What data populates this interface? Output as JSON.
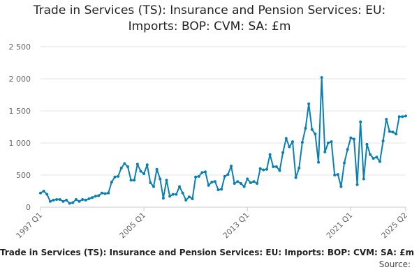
{
  "title_lines": [
    "Trade in Services (TS): Insurance and Pension Services: EU:",
    "Imports: BOP: CVM: SA: £m"
  ],
  "legend": {
    "label": "Trade in Services (TS): Insurance and Pension Services: EU: Imports: BOP: CVM: SA: £m"
  },
  "source": {
    "label": "Source:"
  },
  "colors": {
    "line": "#0b7fb2",
    "grid": "#e6e6e6",
    "axis": "#cccccc",
    "tick_text": "#666666"
  },
  "chart_data": {
    "type": "line",
    "title": "Trade in Services (TS): Insurance and Pension Services: EU: Imports: BOP: CVM: SA: £m",
    "xlabel": "",
    "ylabel": "",
    "ylim": [
      0,
      2500
    ],
    "yticks": [
      0,
      500,
      1000,
      1500,
      2000,
      2500
    ],
    "ytick_labels": [
      "0",
      "500",
      "1 000",
      "1 500",
      "2 000",
      "2 500"
    ],
    "x_start": "1997 Q1",
    "x_end": "2025 Q2",
    "xtick_labels": [
      {
        "label": "1997 Q1",
        "index": 0
      },
      {
        "label": "2005 Q1",
        "index": 32
      },
      {
        "label": "2013 Q1",
        "index": 64
      },
      {
        "label": "2021 Q1",
        "index": 96
      },
      {
        "label": "2025 Q2",
        "index": 113
      }
    ],
    "grid": true,
    "legend_position": "bottom",
    "series": [
      {
        "name": "Trade in Services (TS): Insurance and Pension Services: EU: Imports: BOP: CVM: SA: £m",
        "values": [
          220,
          250,
          200,
          90,
          110,
          120,
          120,
          90,
          110,
          60,
          70,
          120,
          90,
          120,
          110,
          130,
          150,
          170,
          180,
          220,
          210,
          220,
          390,
          470,
          480,
          610,
          680,
          630,
          420,
          420,
          670,
          560,
          520,
          660,
          380,
          320,
          590,
          440,
          140,
          420,
          170,
          200,
          200,
          320,
          220,
          110,
          160,
          130,
          470,
          480,
          540,
          550,
          340,
          390,
          400,
          270,
          280,
          480,
          510,
          640,
          370,
          400,
          370,
          320,
          440,
          380,
          400,
          370,
          600,
          580,
          590,
          820,
          630,
          630,
          570,
          850,
          1070,
          940,
          1020,
          460,
          610,
          1010,
          1230,
          1610,
          1210,
          1140,
          700,
          2020,
          860,
          1000,
          1020,
          500,
          510,
          320,
          690,
          900,
          1080,
          1060,
          350,
          1330,
          440,
          980,
          820,
          760,
          780,
          710,
          1030,
          1370,
          1180,
          1170,
          1140,
          1410,
          1410,
          1420
        ]
      }
    ]
  }
}
